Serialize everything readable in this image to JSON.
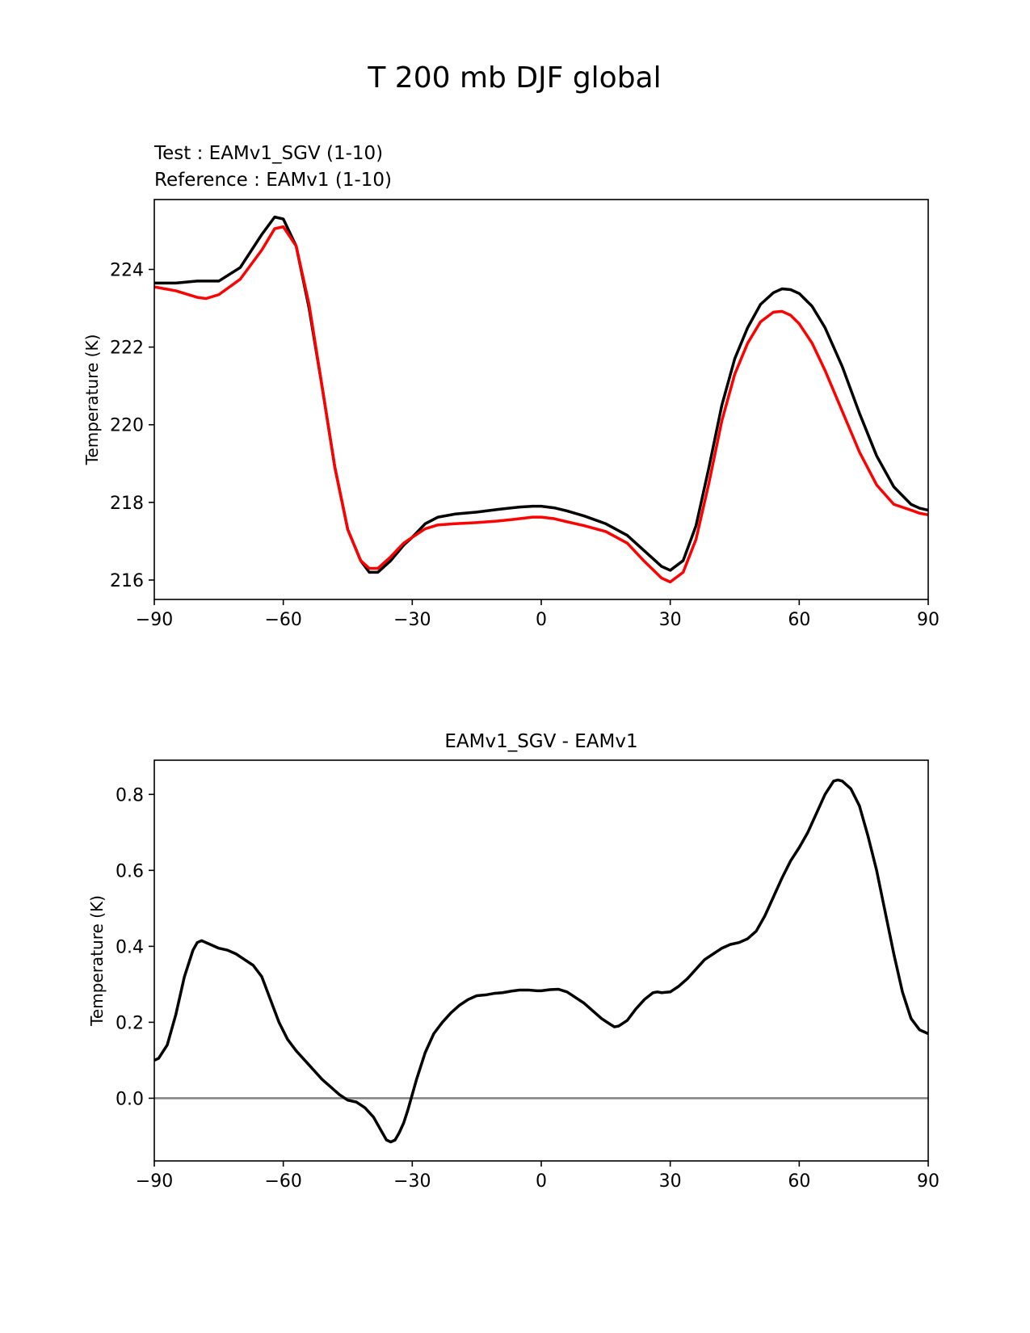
{
  "figure_title": "T 200 mb DJF global",
  "colors": {
    "test": "#000000",
    "reference": "#ff0000",
    "zero_line": "#808080",
    "axes": "#000000"
  },
  "chart_data": [
    {
      "type": "line",
      "panel": "top",
      "xlabel": "",
      "ylabel": "Temperature (K)",
      "xlim": [
        -90,
        90
      ],
      "ylim": [
        215.5,
        225.8
      ],
      "xticks": [
        -90,
        -60,
        -30,
        0,
        30,
        60,
        90
      ],
      "xtick_labels": [
        "−90",
        "−60",
        "−30",
        "0",
        "30",
        "60",
        "90"
      ],
      "yticks": [
        216,
        218,
        220,
        222,
        224
      ],
      "ytick_labels": [
        "216",
        "218",
        "220",
        "222",
        "224"
      ],
      "legend_text": [
        {
          "label": "Test : EAMv1_SGV (1-10)",
          "color": "#000000"
        },
        {
          "label": "Reference : EAMv1 (1-10)",
          "color": "#ff0000"
        }
      ],
      "series": [
        {
          "name": "Test : EAMv1_SGV (1-10)",
          "color": "#000000",
          "x": [
            -90,
            -85,
            -80,
            -75,
            -70,
            -65,
            -62,
            -60,
            -57,
            -54,
            -51,
            -48,
            -45,
            -42,
            -40,
            -38,
            -35,
            -32,
            -30,
            -27,
            -24,
            -20,
            -15,
            -10,
            -5,
            -2,
            0,
            3,
            6,
            10,
            15,
            20,
            24,
            28,
            30,
            33,
            36,
            39,
            42,
            45,
            48,
            51,
            54,
            56,
            58,
            60,
            63,
            66,
            70,
            74,
            78,
            82,
            86,
            88,
            90
          ],
          "y": [
            223.65,
            223.65,
            223.7,
            223.7,
            224.05,
            224.9,
            225.35,
            225.3,
            224.6,
            223.0,
            221.0,
            218.9,
            217.3,
            216.5,
            216.2,
            216.2,
            216.5,
            216.9,
            217.1,
            217.45,
            217.62,
            217.7,
            217.75,
            217.82,
            217.88,
            217.9,
            217.9,
            217.86,
            217.78,
            217.65,
            217.45,
            217.15,
            216.75,
            216.35,
            216.25,
            216.5,
            217.4,
            218.9,
            220.5,
            221.7,
            222.5,
            223.1,
            223.4,
            223.5,
            223.48,
            223.38,
            223.05,
            222.5,
            221.5,
            220.3,
            219.2,
            218.4,
            217.95,
            217.85,
            217.8
          ]
        },
        {
          "name": "Reference : EAMv1 (1-10)",
          "color": "#ff0000",
          "x": [
            -90,
            -85,
            -80,
            -78,
            -75,
            -70,
            -65,
            -62,
            -60,
            -57,
            -54,
            -51,
            -48,
            -45,
            -42,
            -40,
            -38,
            -35,
            -32,
            -30,
            -27,
            -24,
            -20,
            -15,
            -10,
            -5,
            -2,
            0,
            3,
            6,
            10,
            15,
            20,
            24,
            28,
            30,
            33,
            36,
            39,
            42,
            45,
            48,
            51,
            54,
            56,
            58,
            60,
            63,
            66,
            70,
            74,
            78,
            82,
            86,
            88,
            90
          ],
          "y": [
            223.55,
            223.45,
            223.28,
            223.25,
            223.35,
            223.75,
            224.5,
            225.05,
            225.1,
            224.6,
            223.1,
            221.0,
            218.9,
            217.3,
            216.5,
            216.3,
            216.3,
            216.6,
            216.95,
            217.1,
            217.32,
            217.42,
            217.45,
            217.48,
            217.52,
            217.58,
            217.62,
            217.62,
            217.58,
            217.5,
            217.4,
            217.25,
            216.95,
            216.48,
            216.05,
            215.95,
            216.2,
            217.05,
            218.5,
            220.1,
            221.3,
            222.1,
            222.65,
            222.9,
            222.92,
            222.82,
            222.6,
            222.1,
            221.4,
            220.35,
            219.3,
            218.45,
            217.95,
            217.8,
            217.72,
            217.68
          ]
        }
      ]
    },
    {
      "type": "line",
      "panel": "bottom",
      "title": "EAMv1_SGV - EAMv1",
      "xlabel": "",
      "ylabel": "Temperature (K)",
      "xlim": [
        -90,
        90
      ],
      "ylim": [
        -0.165,
        0.89
      ],
      "xticks": [
        -90,
        -60,
        -30,
        0,
        30,
        60,
        90
      ],
      "xtick_labels": [
        "−90",
        "−60",
        "−30",
        "0",
        "30",
        "60",
        "90"
      ],
      "yticks": [
        0.0,
        0.2,
        0.4,
        0.6,
        0.8
      ],
      "ytick_labels": [
        "0.0",
        "0.2",
        "0.4",
        "0.6",
        "0.8"
      ],
      "zero_line": 0.0,
      "series": [
        {
          "name": "EAMv1_SGV - EAMv1",
          "color": "#000000",
          "x": [
            -90,
            -89,
            -87,
            -85,
            -83,
            -81,
            -80,
            -79,
            -77,
            -75,
            -73,
            -71,
            -69,
            -67,
            -65,
            -63,
            -61,
            -59,
            -57,
            -55,
            -53,
            -51,
            -49,
            -47,
            -45,
            -43,
            -41,
            -39,
            -37,
            -36,
            -35,
            -34,
            -33,
            -32,
            -31,
            -30,
            -29,
            -27,
            -25,
            -23,
            -21,
            -19,
            -17,
            -15,
            -13,
            -11,
            -9,
            -7,
            -5,
            -3,
            -1,
            0,
            2,
            4,
            6,
            8,
            10,
            12,
            14,
            16,
            17,
            18,
            20,
            22,
            24,
            26,
            27,
            28,
            30,
            32,
            34,
            36,
            38,
            40,
            42,
            44,
            46,
            48,
            50,
            52,
            54,
            56,
            58,
            60,
            62,
            64,
            66,
            68,
            69,
            70,
            72,
            74,
            76,
            78,
            80,
            82,
            84,
            86,
            88,
            90
          ],
          "y": [
            0.1,
            0.105,
            0.14,
            0.22,
            0.32,
            0.39,
            0.41,
            0.415,
            0.405,
            0.395,
            0.39,
            0.38,
            0.365,
            0.35,
            0.32,
            0.26,
            0.2,
            0.155,
            0.125,
            0.1,
            0.075,
            0.05,
            0.03,
            0.01,
            -0.005,
            -0.01,
            -0.025,
            -0.05,
            -0.09,
            -0.11,
            -0.115,
            -0.11,
            -0.09,
            -0.065,
            -0.03,
            0.01,
            0.05,
            0.12,
            0.17,
            0.2,
            0.225,
            0.245,
            0.26,
            0.27,
            0.272,
            0.276,
            0.278,
            0.282,
            0.285,
            0.285,
            0.283,
            0.283,
            0.286,
            0.287,
            0.28,
            0.265,
            0.25,
            0.23,
            0.21,
            0.195,
            0.188,
            0.19,
            0.205,
            0.235,
            0.26,
            0.278,
            0.28,
            0.278,
            0.28,
            0.295,
            0.315,
            0.34,
            0.365,
            0.38,
            0.395,
            0.405,
            0.41,
            0.42,
            0.44,
            0.48,
            0.53,
            0.58,
            0.625,
            0.66,
            0.7,
            0.75,
            0.8,
            0.835,
            0.838,
            0.835,
            0.815,
            0.77,
            0.69,
            0.6,
            0.49,
            0.38,
            0.28,
            0.21,
            0.18,
            0.17
          ]
        }
      ]
    }
  ]
}
